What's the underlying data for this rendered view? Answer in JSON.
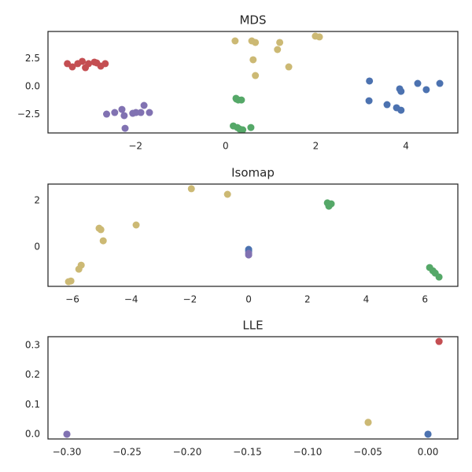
{
  "chart_data": [
    {
      "type": "scatter",
      "title": "MDS",
      "xlim": [
        -3.94,
        5.15
      ],
      "ylim": [
        -4.18,
        4.96
      ],
      "xticks": [
        {
          "value": -2,
          "label": "−2"
        },
        0,
        2,
        4
      ],
      "yticks": [
        {
          "value": -2.5,
          "label": "−2.5"
        },
        {
          "value": 0,
          "label": "0.0"
        },
        2.5
      ],
      "series": [
        {
          "color": "#c44e52",
          "x": [
            -3.51,
            -3.4,
            -3.28,
            -3.18,
            -3.11,
            -3.04,
            -2.91,
            -2.86,
            -2.77,
            -2.67
          ],
          "values": [
            2.06,
            1.77,
            2.06,
            2.27,
            1.7,
            2.06,
            2.2,
            2.13,
            1.84,
            2.06
          ]
        },
        {
          "color": "#8172b2",
          "x": [
            -2.64,
            -2.46,
            -2.3,
            -2.25,
            -2.23,
            -2.06,
            -1.99,
            -1.88,
            -1.81,
            -1.69
          ],
          "values": [
            -2.48,
            -2.34,
            -2.06,
            -2.62,
            -3.76,
            -2.41,
            -2.34,
            -2.34,
            -1.7,
            -2.34
          ]
        },
        {
          "color": "#55a868",
          "x": [
            0.23,
            0.28,
            0.35,
            0.17,
            0.26,
            0.31,
            0.38,
            0.56,
            0.24
          ],
          "values": [
            -1.06,
            -1.21,
            -1.21,
            -3.55,
            -3.69,
            -3.83,
            -3.9,
            -3.69,
            -1.13
          ]
        },
        {
          "color": "#ccb974",
          "x": [
            0.21,
            0.58,
            0.66,
            0.61,
            0.66,
            1.15,
            1.2,
            1.4,
            1.99,
            2.08
          ],
          "values": [
            4.11,
            4.11,
            3.97,
            2.41,
            0.99,
            3.33,
            3.97,
            1.77,
            4.54,
            4.47
          ]
        },
        {
          "color": "#4c72b0",
          "x": [
            3.19,
            3.18,
            3.58,
            3.79,
            3.86,
            3.89,
            3.89,
            4.26,
            4.45,
            4.75
          ],
          "values": [
            0.5,
            -1.28,
            -1.63,
            -1.91,
            -0.21,
            -0.43,
            -2.13,
            0.28,
            -0.28,
            0.28
          ]
        }
      ]
    },
    {
      "type": "scatter",
      "title": "Isomap",
      "xlim": [
        -6.83,
        7.12
      ],
      "ylim": [
        -1.69,
        2.71
      ],
      "xticks": [
        {
          "value": -6,
          "label": "−6"
        },
        {
          "value": -4,
          "label": "−4"
        },
        {
          "value": -2,
          "label": "−2"
        },
        0,
        2,
        4,
        6
      ],
      "yticks": [
        0,
        2
      ],
      "series": [
        {
          "color": "#ccb974",
          "x": [
            -1.95,
            -0.72,
            -3.83,
            -5.09,
            -5.03,
            -4.95,
            -5.7,
            -5.78,
            -6.05,
            -6.13
          ],
          "values": [
            2.51,
            2.27,
            0.95,
            0.81,
            0.75,
            0.27,
            -0.78,
            -0.95,
            -1.46,
            -1.49
          ]
        },
        {
          "color": "#4c72b0",
          "x": [
            0,
            0
          ],
          "values": [
            -0.1,
            -0.17
          ]
        },
        {
          "color": "#8172b2",
          "x": [
            0,
            0
          ],
          "values": [
            -0.27,
            -0.34
          ]
        },
        {
          "color": "#55a868",
          "x": [
            2.68,
            2.76,
            2.81,
            2.73,
            6.16,
            6.27,
            6.35,
            6.48
          ],
          "values": [
            1.9,
            1.83,
            1.86,
            1.76,
            -0.88,
            -1.02,
            -1.12,
            -1.29
          ]
        }
      ]
    },
    {
      "type": "scatter",
      "title": "LLE",
      "xlim": [
        -0.3157,
        0.0248
      ],
      "ylim": [
        -0.016,
        0.329
      ],
      "xticks": [
        {
          "value": -0.3,
          "label": "−0.30"
        },
        {
          "value": -0.25,
          "label": "−0.25"
        },
        {
          "value": -0.2,
          "label": "−0.20"
        },
        {
          "value": -0.15,
          "label": "−0.15"
        },
        {
          "value": -0.1,
          "label": "−0.10"
        },
        {
          "value": -0.05,
          "label": "−0.05"
        },
        {
          "value": 0,
          "label": "0.00"
        }
      ],
      "yticks": [
        {
          "value": 0,
          "label": "0.0"
        },
        0.1,
        0.2,
        0.3
      ],
      "series": [
        {
          "color": "#8172b2",
          "x": [
            -0.3,
            -0.3
          ],
          "values": [
            0,
            0
          ]
        },
        {
          "color": "#c44e52",
          "x": [
            0.0092,
            0.0092
          ],
          "values": [
            0.313,
            0.313
          ]
        },
        {
          "color": "#ccb974",
          "x": [
            -0.0497,
            -0.0497
          ],
          "values": [
            0.04,
            0.04
          ]
        },
        {
          "color": "#4c72b0",
          "x": [
            0,
            0
          ],
          "values": [
            0,
            0
          ]
        }
      ]
    }
  ]
}
